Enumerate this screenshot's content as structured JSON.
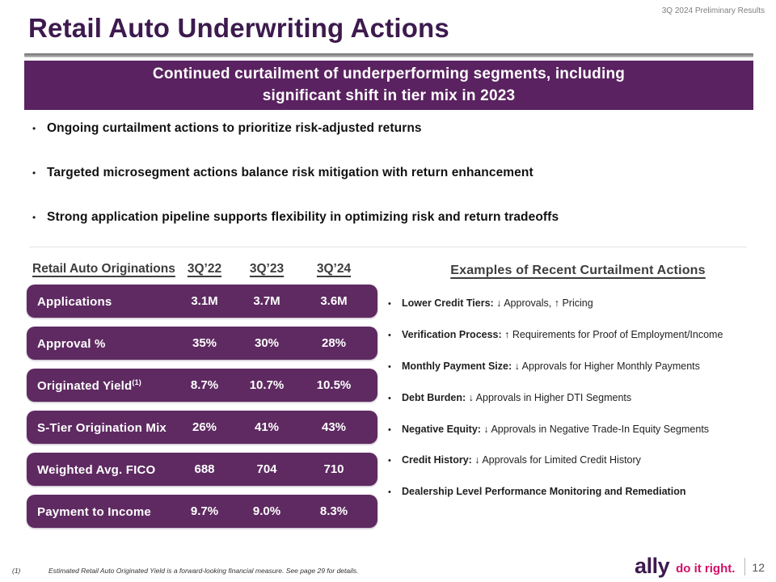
{
  "meta": {
    "header_note": "3Q 2024 Preliminary Results",
    "page_number": "12"
  },
  "title": "Retail Auto Underwriting Actions",
  "banner": {
    "line1": "Continued curtailment of underperforming segments, including",
    "line2": "significant shift in tier mix in 2023"
  },
  "bullets": [
    "Ongoing curtailment actions to prioritize risk-adjusted returns",
    "Targeted microsegment actions balance risk mitigation with return enhancement",
    "Strong application pipeline supports flexibility in optimizing risk and return tradeoffs"
  ],
  "table": {
    "title": "Retail Auto Originations",
    "columns": [
      "3Q’22",
      "3Q’23",
      "3Q’24"
    ],
    "rows": [
      {
        "label": "Applications",
        "label_sup": "",
        "values": [
          "3.1M",
          "3.7M",
          "3.6M"
        ]
      },
      {
        "label": "Approval %",
        "label_sup": "",
        "values": [
          "35%",
          "30%",
          "28%"
        ]
      },
      {
        "label": "Originated Yield",
        "label_sup": "(1)",
        "values": [
          "8.7%",
          "10.7%",
          "10.5%"
        ]
      },
      {
        "label": "S-Tier Origination Mix",
        "label_sup": "",
        "values": [
          "26%",
          "41%",
          "43%"
        ]
      },
      {
        "label": "Weighted Avg. FICO",
        "label_sup": "",
        "values": [
          "688",
          "704",
          "710"
        ]
      },
      {
        "label": "Payment to Income",
        "label_sup": "",
        "values": [
          "9.7%",
          "9.0%",
          "8.3%"
        ]
      }
    ]
  },
  "curtailment": {
    "title": "Examples of Recent Curtailment Actions",
    "items": [
      {
        "label": "Lower Credit Tiers",
        "colon": ": ",
        "desc": "↓ Approvals, ↑ Pricing"
      },
      {
        "label": "Verification Process",
        "colon": ": ",
        "desc": "↑ Requirements for Proof of Employment/Income"
      },
      {
        "label": "Monthly Payment Size",
        "colon": ": ",
        "desc": "↓ Approvals for Higher Monthly Payments"
      },
      {
        "label": "Debt Burden",
        "colon": ": ",
        "desc": "↓ Approvals in Higher DTI Segments"
      },
      {
        "label": "Negative Equity",
        "colon": ": ",
        "desc": "↓ Approvals in Negative Trade-In Equity Segments"
      },
      {
        "label": "Credit History",
        "colon": ": ",
        "desc": "↓ Approvals for Limited Credit History"
      },
      {
        "label": "Dealership Level Performance Monitoring and Remediation",
        "colon": "",
        "desc": ""
      }
    ]
  },
  "footnote": {
    "marker": "(1)",
    "text": "Estimated Retail Auto Originated Yield is a forward-looking financial measure. See page 29 for details."
  },
  "logo": {
    "brand": "ally",
    "tagline": "do it right."
  },
  "bullet_glyph": "•",
  "colors": {
    "title_purple": "#3d1a4e",
    "banner_purple": "#5a2260",
    "row_purple": "#5e2a61",
    "accent_pink": "#d30f67",
    "header_gray": "#7f7f7f",
    "table_header_charcoal": "#3d3d3d"
  }
}
